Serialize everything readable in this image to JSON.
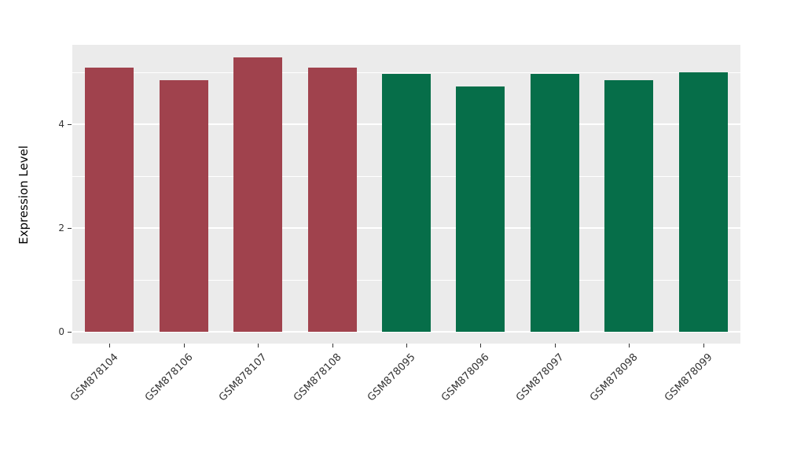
{
  "chart_data": {
    "type": "bar",
    "title": "",
    "xlabel": "",
    "ylabel": "Expression Level",
    "categories": [
      "GSM878104",
      "GSM878106",
      "GSM878107",
      "GSM878108",
      "GSM878095",
      "GSM878096",
      "GSM878097",
      "GSM878098",
      "GSM878099"
    ],
    "values": [
      5.09,
      4.85,
      5.29,
      5.09,
      4.97,
      4.73,
      4.97,
      4.85,
      5.0
    ],
    "bar_colors": [
      "#A0424D",
      "#A0424D",
      "#A0424D",
      "#A0424D",
      "#066E49",
      "#066E49",
      "#066E49",
      "#066E49",
      "#066E49"
    ],
    "group_colors": {
      "maroon": "#A0424D",
      "green": "#066E49"
    },
    "ytick_labels": [
      "0",
      "2",
      "4"
    ],
    "yticks": [
      0,
      2,
      4
    ],
    "yticks_minor": [
      1,
      3,
      5
    ],
    "ylim": [
      0,
      5.55
    ],
    "grid": true,
    "legend": "none",
    "panel_background": "#EBEBEB",
    "gridline_color": "#FFFFFF",
    "axis_text_color": "#333333"
  }
}
